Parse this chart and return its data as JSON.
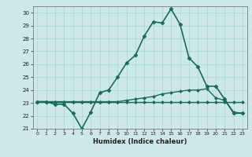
{
  "xlabel": "Humidex (Indice chaleur)",
  "bg_color": "#cce8e8",
  "line_color": "#1a6b5a",
  "grid_color": "#aad4d4",
  "xlim": [
    -0.5,
    23.5
  ],
  "ylim": [
    21,
    30.5
  ],
  "yticks": [
    21,
    22,
    23,
    24,
    25,
    26,
    27,
    28,
    29,
    30
  ],
  "xticks": [
    0,
    1,
    2,
    3,
    4,
    5,
    6,
    7,
    8,
    9,
    10,
    11,
    12,
    13,
    14,
    15,
    16,
    17,
    18,
    19,
    20,
    21,
    22,
    23
  ],
  "series": [
    {
      "x": [
        0,
        1,
        2,
        3,
        4,
        5,
        6,
        7,
        8,
        9,
        10,
        11,
        12,
        13,
        14,
        15,
        16,
        17,
        18,
        19,
        20,
        21,
        22,
        23
      ],
      "y": [
        23.1,
        23.1,
        22.9,
        22.9,
        22.2,
        21.0,
        22.3,
        23.8,
        24.0,
        25.0,
        26.1,
        26.7,
        28.2,
        29.3,
        29.2,
        30.3,
        29.1,
        26.5,
        25.8,
        24.3,
        24.3,
        23.3,
        22.2,
        22.2
      ],
      "marker": "D",
      "markersize": 2.5,
      "linewidth": 1.2
    },
    {
      "x": [
        0,
        1,
        2,
        3,
        4,
        5,
        6,
        7,
        8,
        9,
        10,
        11,
        12,
        13,
        14,
        15,
        16,
        17,
        18,
        19,
        20,
        21,
        22,
        23
      ],
      "y": [
        23.1,
        23.1,
        23.1,
        23.1,
        23.1,
        23.1,
        23.1,
        23.1,
        23.1,
        23.1,
        23.2,
        23.3,
        23.4,
        23.5,
        23.7,
        23.8,
        23.9,
        24.0,
        24.0,
        24.1,
        23.4,
        23.2,
        22.3,
        22.2
      ],
      "marker": "D",
      "markersize": 2.0,
      "linewidth": 1.0
    },
    {
      "x": [
        0,
        1,
        2,
        3,
        4,
        5,
        6,
        7,
        8,
        9,
        10,
        11,
        12,
        13,
        14,
        15,
        16,
        17,
        18,
        19,
        20,
        21,
        22,
        23
      ],
      "y": [
        23.1,
        23.1,
        23.1,
        23.1,
        23.1,
        23.1,
        23.1,
        23.1,
        23.1,
        23.1,
        23.1,
        23.1,
        23.1,
        23.1,
        23.1,
        23.1,
        23.1,
        23.1,
        23.1,
        23.1,
        23.1,
        23.1,
        23.1,
        23.1
      ],
      "marker": "D",
      "markersize": 2.0,
      "linewidth": 1.0
    }
  ]
}
